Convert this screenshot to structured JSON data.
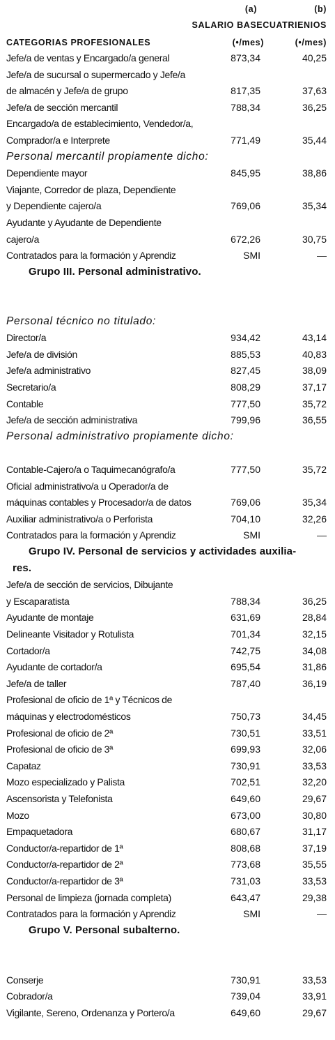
{
  "header": {
    "col_a_letter": "(a)",
    "col_b_letter": "(b)",
    "salary_title": "SALARIO BASECUATRIENIOS",
    "category_title": "CATEGORIAS PROFESIONALES",
    "unit_a": "(•/mes)",
    "unit_b": "(•/mes)"
  },
  "rows": [
    {
      "type": "row",
      "label": "Jefe/a de ventas y Encargado/a general",
      "a": "873,34",
      "b": "40,25"
    },
    {
      "type": "row",
      "label": "Jefe/a de sucursal o supermercado y Jefe/a",
      "a": "",
      "b": ""
    },
    {
      "type": "row",
      "label": " de almacén y Jefe/a de grupo",
      "a": "817,35",
      "b": "37,63"
    },
    {
      "type": "row",
      "label": "Jefe/a de sección mercantil",
      "a": "788,34",
      "b": "36,25"
    },
    {
      "type": "row",
      "label": "Encargado/a de establecimiento, Vendedor/a,",
      "a": "",
      "b": ""
    },
    {
      "type": "row",
      "label": "Comprador/a e Interprete",
      "a": "771,49",
      "b": "35,44"
    },
    {
      "type": "section",
      "label": "Personal mercantil propiamente dicho:"
    },
    {
      "type": "row",
      "label": "Dependiente mayor",
      "a": "845,95",
      "b": "38,86"
    },
    {
      "type": "row",
      "label": "Viajante, Corredor de plaza, Dependiente",
      "a": "",
      "b": ""
    },
    {
      "type": "row",
      "label": "y Dependiente cajero/a",
      "a": "769,06",
      "b": "35,34"
    },
    {
      "type": "row",
      "label": "Ayudante y Ayudante de Dependiente",
      "a": "",
      "b": ""
    },
    {
      "type": "row",
      "label": "cajero/a",
      "a": "672,26",
      "b": "30,75"
    },
    {
      "type": "row",
      "label": "Contratados para la formación y Aprendiz",
      "a": "SMI",
      "b": "—"
    },
    {
      "type": "group",
      "label": "Grupo III. Personal administrativo."
    },
    {
      "type": "blank"
    },
    {
      "type": "blank"
    },
    {
      "type": "section",
      "label": "Personal técnico no titulado:"
    },
    {
      "type": "row",
      "label": "Director/a",
      "a": "934,42",
      "b": "43,14"
    },
    {
      "type": "row",
      "label": "Jefe/a de división",
      "a": "885,53",
      "b": "40,83"
    },
    {
      "type": "row",
      "label": "Jefe/a administrativo",
      "a": "827,45",
      "b": "38,09"
    },
    {
      "type": "row",
      "label": "Secretario/a",
      "a": "808,29",
      "b": "37,17"
    },
    {
      "type": "row",
      "label": "Contable",
      "a": "777,50",
      "b": "35,72"
    },
    {
      "type": "row",
      "label": "Jefe/a de sección administrativa",
      "a": "799,96",
      "b": "36,55"
    },
    {
      "type": "section",
      "label": "Personal administrativo propiamente dicho:"
    },
    {
      "type": "blank"
    },
    {
      "type": "row",
      "label": "Contable-Cajero/a o Taquimecanógrafo/a",
      "a": "777,50",
      "b": "35,72"
    },
    {
      "type": "row",
      "label": "Oficial administrativo/a u Operador/a de",
      "a": "",
      "b": ""
    },
    {
      "type": "row",
      "label": "máquinas contables y Procesador/a de datos",
      "a": "769,06",
      "b": "35,34"
    },
    {
      "type": "row",
      "label": "Auxiliar administrativo/a o Perforista",
      "a": "704,10",
      "b": "32,26"
    },
    {
      "type": "row",
      "label": "Contratados para la formación y Aprendiz",
      "a": "SMI",
      "b": "—"
    },
    {
      "type": "group",
      "label": "Grupo IV. Personal de servicios y actividades auxilia-"
    },
    {
      "type": "groupcont",
      "label": "res."
    },
    {
      "type": "row",
      "label": "Jefe/a de sección de servicios, Dibujante",
      "a": "",
      "b": ""
    },
    {
      "type": "row",
      "label": "y Escaparatista",
      "a": "788,34",
      "b": "36,25"
    },
    {
      "type": "row",
      "label": "Ayudante de montaje",
      "a": "631,69",
      "b": "28,84"
    },
    {
      "type": "row",
      "label": "Delineante Visitador y Rotulista",
      "a": "701,34",
      "b": "32,15"
    },
    {
      "type": "row",
      "label": "Cortador/a",
      "a": "742,75",
      "b": "34,08"
    },
    {
      "type": "row",
      "label": "Ayudante de cortador/a",
      "a": "695,54",
      "b": "31,86"
    },
    {
      "type": "row",
      "label": "Jefe/a de taller",
      "a": "787,40",
      "b": "36,19"
    },
    {
      "type": "row",
      "label": "Profesional de oficio de 1ª y Técnicos de",
      "a": "",
      "b": ""
    },
    {
      "type": "row",
      "label": "máquinas y electrodomésticos",
      "a": "750,73",
      "b": "34,45"
    },
    {
      "type": "row",
      "label": "Profesional de oficio de 2ª",
      "a": "730,51",
      "b": "33,51"
    },
    {
      "type": "row",
      "label": "Profesional de oficio de 3ª",
      "a": "699,93",
      "b": "32,06"
    },
    {
      "type": "row",
      "label": "Capataz",
      "a": "730,91",
      "b": "33,53"
    },
    {
      "type": "row",
      "label": "Mozo especializado y Palista",
      "a": "702,51",
      "b": "32,20"
    },
    {
      "type": "row",
      "label": "Ascensorista y Telefonista",
      "a": "649,60",
      "b": "29,67"
    },
    {
      "type": "row",
      "label": "Mozo",
      "a": "673,00",
      "b": "30,80"
    },
    {
      "type": "row",
      "label": "Empaquetadora",
      "a": "680,67",
      "b": "31,17"
    },
    {
      "type": "row",
      "label": "Conductor/a-repartidor de 1ª",
      "a": "808,68",
      "b": "37,19"
    },
    {
      "type": "row",
      "label": "Conductor/a-repartidor de 2ª",
      "a": "773,68",
      "b": "35,55"
    },
    {
      "type": "row",
      "label": "Conductor/a-repartidor de 3ª",
      "a": "731,03",
      "b": "33,53"
    },
    {
      "type": "row",
      "label": "Personal de limpieza (jornada completa)",
      "a": "643,47",
      "b": "29,38"
    },
    {
      "type": "row",
      "label": "Contratados para la formación y Aprendiz",
      "a": "SMI",
      "b": "—"
    },
    {
      "type": "group",
      "label": "Grupo V. Personal subalterno."
    },
    {
      "type": "blank"
    },
    {
      "type": "blank"
    },
    {
      "type": "row",
      "label": "Conserje",
      "a": "730,91",
      "b": "33,53"
    },
    {
      "type": "row",
      "label": "Cobrador/a",
      "a": "739,04",
      "b": "33,91"
    },
    {
      "type": "row",
      "label": "Vigilante, Sereno, Ordenanza y Portero/a",
      "a": "649,60",
      "b": "29,67"
    }
  ]
}
